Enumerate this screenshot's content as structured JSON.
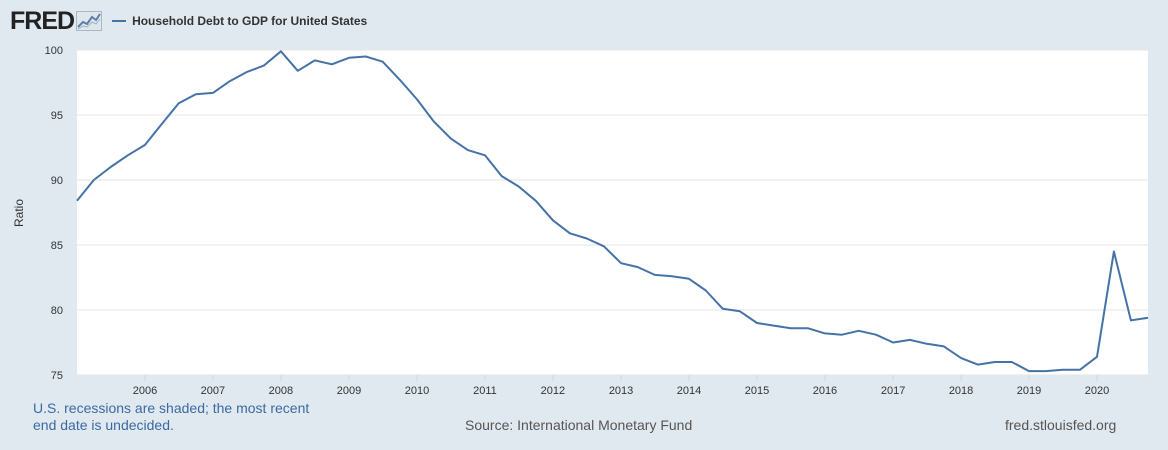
{
  "header": {
    "logo_text": "FRED",
    "logo_icon": "chart-line-icon"
  },
  "legend": {
    "series_name": "Household Debt to GDP for United States",
    "color": "#4572a7"
  },
  "footer": {
    "recession_note": "U.S. recessions are shaded; the most recent end date is undecided.",
    "source": "Source: International Monetary Fund",
    "site": "fred.stlouisfed.org"
  },
  "chart_data": {
    "type": "line",
    "title": "Household Debt to GDP for United States",
    "xlabel": "",
    "ylabel": "Ratio",
    "ylim": [
      75,
      100
    ],
    "xlim": [
      "2005-01-01",
      "2020-10-01"
    ],
    "yticks": [
      75,
      80,
      85,
      90,
      95,
      100
    ],
    "xticks": [
      "2006",
      "2007",
      "2008",
      "2009",
      "2010",
      "2011",
      "2012",
      "2013",
      "2014",
      "2015",
      "2016",
      "2017",
      "2018",
      "2019",
      "2020"
    ],
    "grid": "horizontal",
    "series": [
      {
        "name": "Household Debt to GDP for United States",
        "color": "#4572a7",
        "x": [
          "2005-01-01",
          "2005-04-01",
          "2005-07-01",
          "2005-10-01",
          "2006-01-01",
          "2006-04-01",
          "2006-07-01",
          "2006-10-01",
          "2007-01-01",
          "2007-04-01",
          "2007-07-01",
          "2007-10-01",
          "2008-01-01",
          "2008-04-01",
          "2008-07-01",
          "2008-10-01",
          "2009-01-01",
          "2009-04-01",
          "2009-07-01",
          "2009-10-01",
          "2010-01-01",
          "2010-04-01",
          "2010-07-01",
          "2010-10-01",
          "2011-01-01",
          "2011-04-01",
          "2011-07-01",
          "2011-10-01",
          "2012-01-01",
          "2012-04-01",
          "2012-07-01",
          "2012-10-01",
          "2013-01-01",
          "2013-04-01",
          "2013-07-01",
          "2013-10-01",
          "2014-01-01",
          "2014-04-01",
          "2014-07-01",
          "2014-10-01",
          "2015-01-01",
          "2015-04-01",
          "2015-07-01",
          "2015-10-01",
          "2016-01-01",
          "2016-04-01",
          "2016-07-01",
          "2016-10-01",
          "2017-01-01",
          "2017-04-01",
          "2017-07-01",
          "2017-10-01",
          "2018-01-01",
          "2018-04-01",
          "2018-07-01",
          "2018-10-01",
          "2019-01-01",
          "2019-04-01",
          "2019-07-01",
          "2019-10-01",
          "2020-01-01",
          "2020-04-01",
          "2020-07-01",
          "2020-10-01"
        ],
        "values": [
          88.4,
          90.0,
          91.0,
          91.9,
          92.7,
          94.3,
          95.9,
          96.6,
          96.7,
          97.6,
          98.3,
          98.8,
          99.9,
          98.4,
          99.2,
          98.9,
          99.4,
          99.5,
          99.1,
          97.7,
          96.2,
          94.5,
          93.2,
          92.3,
          91.9,
          90.3,
          89.5,
          88.4,
          86.9,
          85.9,
          85.5,
          84.9,
          83.6,
          83.3,
          82.7,
          82.6,
          82.4,
          81.5,
          80.1,
          79.9,
          79.0,
          78.8,
          78.6,
          78.6,
          78.2,
          78.1,
          78.4,
          78.1,
          77.5,
          77.7,
          77.4,
          77.2,
          76.3,
          75.8,
          76.0,
          76.0,
          75.3,
          75.3,
          75.4,
          75.4,
          76.4,
          84.5,
          79.2,
          79.4
        ]
      }
    ]
  }
}
